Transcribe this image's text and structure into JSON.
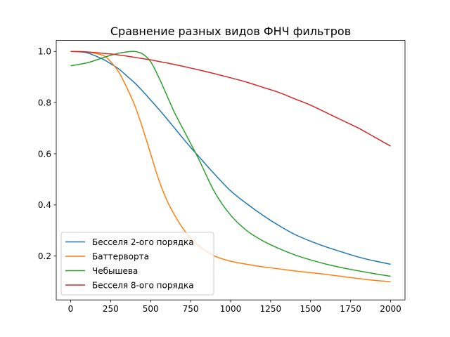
{
  "chart_data": {
    "type": "line",
    "title": "Сравнение разных видов ФНЧ фильтров",
    "xlabel": "",
    "ylabel": "",
    "xlim": [
      -90,
      2090
    ],
    "ylim": [
      0.0285,
      1.043
    ],
    "xticks": [
      0,
      250,
      500,
      750,
      1000,
      1250,
      1500,
      1750,
      2000
    ],
    "yticks": [
      0.2,
      0.4,
      0.6,
      0.8,
      1.0
    ],
    "ytick_labels": [
      "0.2",
      "0.4",
      "0.6",
      "0.8",
      "1.0"
    ],
    "grid": false,
    "legend_position": "lower-left",
    "x": [
      0,
      100,
      200,
      250,
      300,
      350,
      400,
      450,
      500,
      550,
      600,
      650,
      700,
      750,
      800,
      900,
      1000,
      1100,
      1200,
      1300,
      1400,
      1500,
      1600,
      1700,
      1800,
      1900,
      2000
    ],
    "series": [
      {
        "name": "Бесселя 2-ого порядка",
        "color": "#1f77b4",
        "values": [
          1.0,
          0.995,
          0.97,
          0.952,
          0.932,
          0.905,
          0.877,
          0.845,
          0.81,
          0.775,
          0.738,
          0.7,
          0.662,
          0.625,
          0.59,
          0.52,
          0.455,
          0.405,
          0.36,
          0.32,
          0.285,
          0.258,
          0.235,
          0.215,
          0.196,
          0.181,
          0.168
        ]
      },
      {
        "name": "Баттерворта",
        "color": "#ff7f0e",
        "values": [
          1.0,
          0.998,
          0.985,
          0.96,
          0.92,
          0.86,
          0.79,
          0.7,
          0.6,
          0.5,
          0.42,
          0.36,
          0.31,
          0.27,
          0.24,
          0.2,
          0.18,
          0.168,
          0.158,
          0.15,
          0.142,
          0.135,
          0.128,
          0.12,
          0.112,
          0.105,
          0.1
        ]
      },
      {
        "name": "Чебышева",
        "color": "#2ca02c",
        "values": [
          0.944,
          0.955,
          0.975,
          0.985,
          0.993,
          0.998,
          1.0,
          0.99,
          0.96,
          0.9,
          0.83,
          0.76,
          0.7,
          0.64,
          0.58,
          0.45,
          0.36,
          0.3,
          0.26,
          0.23,
          0.205,
          0.185,
          0.168,
          0.154,
          0.142,
          0.131,
          0.121
        ]
      },
      {
        "name": "Бесселя 8-ого порядка",
        "color": "#d62728",
        "values": [
          1.0,
          0.998,
          0.993,
          0.99,
          0.986,
          0.982,
          0.977,
          0.972,
          0.967,
          0.961,
          0.955,
          0.949,
          0.942,
          0.935,
          0.928,
          0.913,
          0.897,
          0.88,
          0.86,
          0.84,
          0.815,
          0.79,
          0.76,
          0.73,
          0.7,
          0.665,
          0.63
        ]
      }
    ]
  }
}
